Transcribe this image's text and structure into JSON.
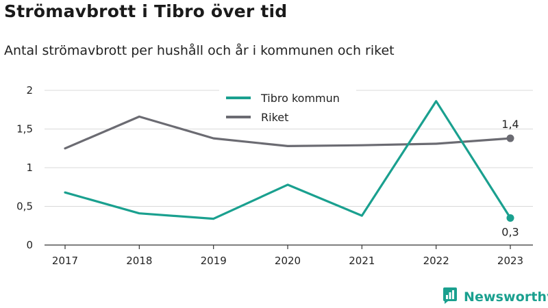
{
  "header": {
    "title": "Strömavbrott i Tibro över tid",
    "subtitle": "Antal strömavbrott per hushåll och år i kommunen och riket"
  },
  "brand": {
    "name": "Newsworthy",
    "icon": "newsworthy-logo-icon",
    "color": "#1aa08f"
  },
  "chart_data": {
    "type": "line",
    "title": "Strömavbrott i Tibro över tid",
    "subtitle": "Antal strömavbrott per hushåll och år i kommunen och riket",
    "xlabel": "",
    "ylabel": "",
    "categories": [
      "2017",
      "2018",
      "2019",
      "2020",
      "2021",
      "2022",
      "2023"
    ],
    "ylim": [
      0,
      2
    ],
    "yticks": [
      0,
      0.5,
      1,
      1.5,
      2
    ],
    "ytick_labels": [
      "0",
      "0,5",
      "1",
      "1,5",
      "2"
    ],
    "grid": "horizontal",
    "legend_position": "top-center",
    "series": [
      {
        "name": "Tibro kommun",
        "color": "#1aa08f",
        "values": [
          0.68,
          0.41,
          0.34,
          0.78,
          0.38,
          1.86,
          0.35
        ],
        "end_label": "0,3"
      },
      {
        "name": "Riket",
        "color": "#6b6b72",
        "values": [
          1.25,
          1.66,
          1.38,
          1.28,
          1.29,
          1.31,
          1.38
        ],
        "end_label": "1,4"
      }
    ]
  }
}
